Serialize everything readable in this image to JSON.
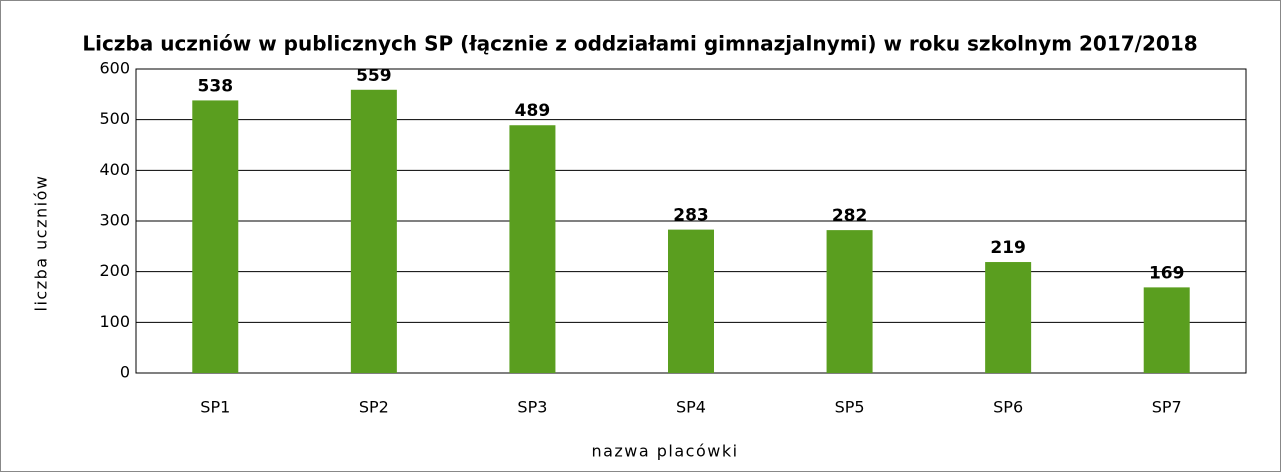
{
  "chart_data": {
    "type": "bar",
    "title": "Liczba uczniów w publicznych SP (łącznie z oddziałami gimnazjalnymi) w roku szkolnym 2017/2018",
    "x_label": "nazwa placówki",
    "y_label": "liczba uczniów",
    "categories": [
      "SP1",
      "SP2",
      "SP3",
      "SP4",
      "SP5",
      "SP6",
      "SP7"
    ],
    "values": [
      538,
      559,
      489,
      283,
      282,
      219,
      169
    ],
    "color": "#5a9e1f",
    "ylim": [
      0,
      600
    ],
    "yticks": [
      0,
      100,
      200,
      300,
      400,
      500,
      600
    ],
    "grid": true
  }
}
